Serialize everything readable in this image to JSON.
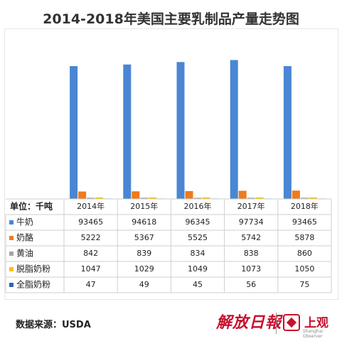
{
  "title": "2014-2018年美国主要乳制品产量走势图",
  "unit_label": "单位：千吨",
  "source": "数据来源：USDA",
  "brand": {
    "calligraphy": "解放日報",
    "name": "上观",
    "subtitle": "Shanghai Observer"
  },
  "colors": [
    "#4a86d4",
    "#ee7b1c",
    "#a5a5a5",
    "#ffc000",
    "#2f64b5"
  ],
  "chart_data": {
    "type": "bar",
    "title": "2014-2018年美国主要乳制品产量走势图",
    "categories": [
      "2014年",
      "2015年",
      "2016年",
      "2017年",
      "2018年"
    ],
    "ylabel": "单位：千吨",
    "ylim": [
      0,
      100000
    ],
    "grid": false,
    "legend": "table-left",
    "series": [
      {
        "name": "牛奶",
        "values": [
          93465,
          94618,
          96345,
          97734,
          93465
        ]
      },
      {
        "name": "奶酪",
        "values": [
          5222,
          5367,
          5525,
          5742,
          5878
        ]
      },
      {
        "name": "黄油",
        "values": [
          842,
          839,
          834,
          838,
          860
        ]
      },
      {
        "name": "脱脂奶粉",
        "values": [
          1047,
          1029,
          1049,
          1073,
          1050
        ]
      },
      {
        "name": "全脂奶粉",
        "values": [
          47,
          49,
          45,
          56,
          75
        ]
      }
    ]
  }
}
